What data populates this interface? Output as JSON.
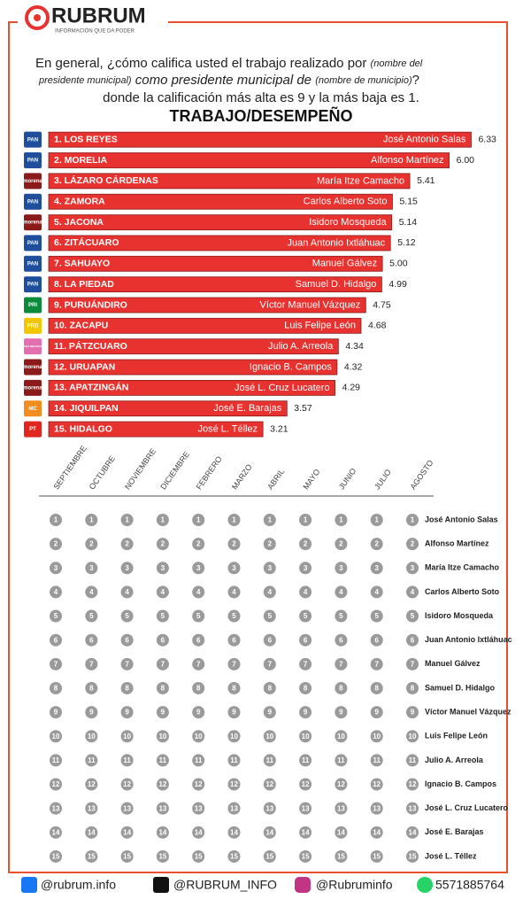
{
  "header": {
    "brand": "RUBRUM",
    "tagline": "INFORMACIÓN QUE DA PODER"
  },
  "question": {
    "line1": "En general, ¿cómo califica usted el trabajo realizado por",
    "note1a": "(nombre del",
    "note1b": "presidente municipal)",
    "line2": "como presidente municipal de",
    "note2": "(nombre de municipio)",
    "line2end": "?",
    "line3": "donde la calificación más alta es 9 y la más baja es 1."
  },
  "chart_data": [
    {
      "type": "bar",
      "title": "TRABAJO/DESEMPEÑO",
      "color": "#e8322f",
      "categories": [
        "1. LOS REYES",
        "2. MORELIA",
        "3. LÁZARO CÁRDENAS",
        "4. ZAMORA",
        "5. JACONA",
        "6. ZITÁCUARO",
        "7. SAHUAYO",
        "8. LA PIEDAD",
        "9. PURUÁNDIRO",
        "10. ZACAPU",
        "11. PÁTZCUARO",
        "12. URUAPAN",
        "13. APATZINGÁN",
        "14. JIQUILPAN",
        "15. HIDALGO"
      ],
      "names": [
        "José Antonio Salas",
        "Alfonso Martínez",
        "María Itze Camacho",
        "Carlos Alberto Soto",
        "Isidoro Mosqueda",
        "Juan Antonio Ixtláhuac",
        "Manuel Gálvez",
        "Samuel D. Hidalgo",
        "Víctor Manuel Vázquez",
        "Luis Felipe León",
        "Julio A. Arreola",
        "Ignacio B. Campos",
        "José L. Cruz Lucatero",
        "José E. Barajas",
        "José L. Téllez"
      ],
      "parties": [
        "PAN",
        "PAN",
        "morena",
        "PAN",
        "morena",
        "PAN",
        "PAN",
        "PAN",
        "PRI",
        "PRD",
        "FUERZA MICHOACÁN",
        "morena",
        "morena",
        "MC",
        "PT"
      ],
      "values": [
        6.33,
        6.0,
        5.41,
        5.15,
        5.14,
        5.12,
        5.0,
        4.99,
        4.75,
        4.68,
        4.34,
        4.32,
        4.29,
        3.57,
        3.21
      ],
      "value_labels": [
        "6.33",
        "6.00",
        "5.41",
        "5.15",
        "5.14",
        "5.12",
        "5.00",
        "4.99",
        "4.75",
        "4.68",
        "4.34",
        "4.32",
        "4.29",
        "3.57",
        "3.21"
      ],
      "xlim": [
        0,
        7
      ]
    },
    {
      "type": "bump",
      "months": [
        "SEPTIEMBRE",
        "OCTUBRE",
        "NOVIEMBRE",
        "DICIEMBRE",
        "FEBRERO",
        "MARZO",
        "ABRIL",
        "MAYO",
        "JUNIO",
        "JULIO",
        "AGOSTO"
      ],
      "ranks": [
        1,
        2,
        3,
        4,
        5,
        6,
        7,
        8,
        9,
        10,
        11,
        12,
        13,
        14,
        15
      ],
      "names": [
        "José Antonio Salas",
        "Alfonso Martínez",
        "María Itze Camacho",
        "Carlos Alberto Soto",
        "Isidoro Mosqueda",
        "Juan Antonio Ixtláhuac",
        "Manuel Gálvez",
        "Samuel D. Hidalgo",
        "Víctor Manuel Vázquez",
        "Luis Felipe León",
        "Julio A. Arreola",
        "Ignacio B. Campos",
        "José L. Cruz Lucatero",
        "José E. Barajas",
        "José L. Téllez"
      ]
    }
  ],
  "footer": {
    "facebook": "@rubrum.info",
    "x": "@RUBRUM_INFO",
    "instagram": "@Rubruminfo",
    "whatsapp": "5571885764"
  }
}
